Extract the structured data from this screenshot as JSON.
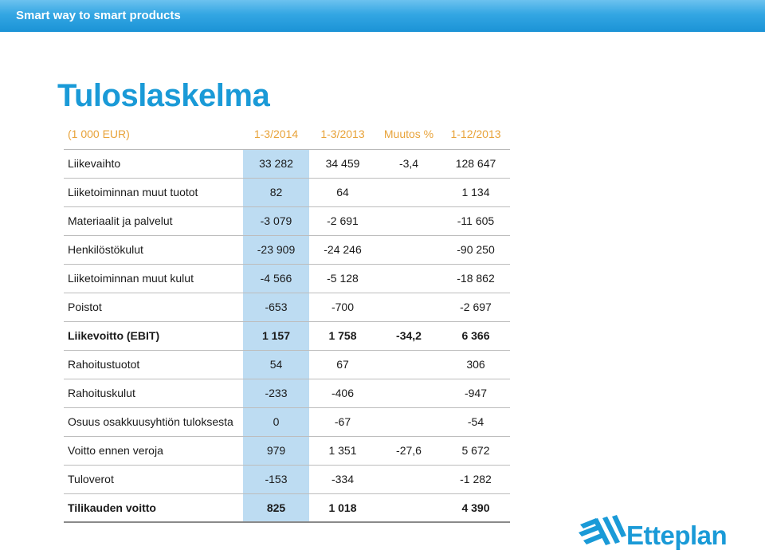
{
  "header": {
    "tagline": "Smart way to smart products"
  },
  "page": {
    "title": "Tuloslaskelma"
  },
  "table": {
    "columns": [
      "(1 000 EUR)",
      "1-3/2014",
      "1-3/2013",
      "Muutos %",
      "1-12/2013"
    ],
    "rows": [
      {
        "label": "Liikevaihto",
        "q1_2014": "33 282",
        "q1_2013": "34 459",
        "change": "-3,4",
        "fy_2013": "128 647"
      },
      {
        "label": "Liiketoiminnan muut tuotot",
        "q1_2014": "82",
        "q1_2013": "64",
        "change": "",
        "fy_2013": "1 134"
      },
      {
        "label": "Materiaalit ja palvelut",
        "q1_2014": "-3 079",
        "q1_2013": "-2 691",
        "change": "",
        "fy_2013": "-11 605"
      },
      {
        "label": "Henkilöstökulut",
        "q1_2014": "-23 909",
        "q1_2013": "-24 246",
        "change": "",
        "fy_2013": "-90 250"
      },
      {
        "label": "Liiketoiminnan muut kulut",
        "q1_2014": "-4 566",
        "q1_2013": "-5 128",
        "change": "",
        "fy_2013": "-18 862"
      },
      {
        "label": "Poistot",
        "q1_2014": "-653",
        "q1_2013": "-700",
        "change": "",
        "fy_2013": "-2 697"
      },
      {
        "label": "Liikevoitto (EBIT)",
        "q1_2014": "1 157",
        "q1_2013": "1 758",
        "change": "-34,2",
        "fy_2013": "6 366"
      },
      {
        "label": "Rahoitustuotot",
        "q1_2014": "54",
        "q1_2013": "67",
        "change": "",
        "fy_2013": "306"
      },
      {
        "label": "Rahoituskulut",
        "q1_2014": "-233",
        "q1_2013": "-406",
        "change": "",
        "fy_2013": "-947"
      },
      {
        "label": "Osuus osakkuusyhtiön tuloksesta",
        "q1_2014": "0",
        "q1_2013": "-67",
        "change": "",
        "fy_2013": "-54"
      },
      {
        "label": "Voitto ennen veroja",
        "q1_2014": "979",
        "q1_2013": "1 351",
        "change": "-27,6",
        "fy_2013": "5 672"
      },
      {
        "label": "Tuloverot",
        "q1_2014": "-153",
        "q1_2013": "-334",
        "change": "",
        "fy_2013": "-1 282"
      },
      {
        "label": "Tilikauden voitto",
        "q1_2014": "825",
        "q1_2013": "1 018",
        "change": "",
        "fy_2013": "4 390"
      }
    ]
  },
  "logo": {
    "name": "Etteplan"
  },
  "colors": {
    "header_blue": "#1b93d6",
    "title_blue": "#1a9ad7",
    "column_header_orange": "#e8a33a",
    "highlight_column": "#bddcf2"
  }
}
